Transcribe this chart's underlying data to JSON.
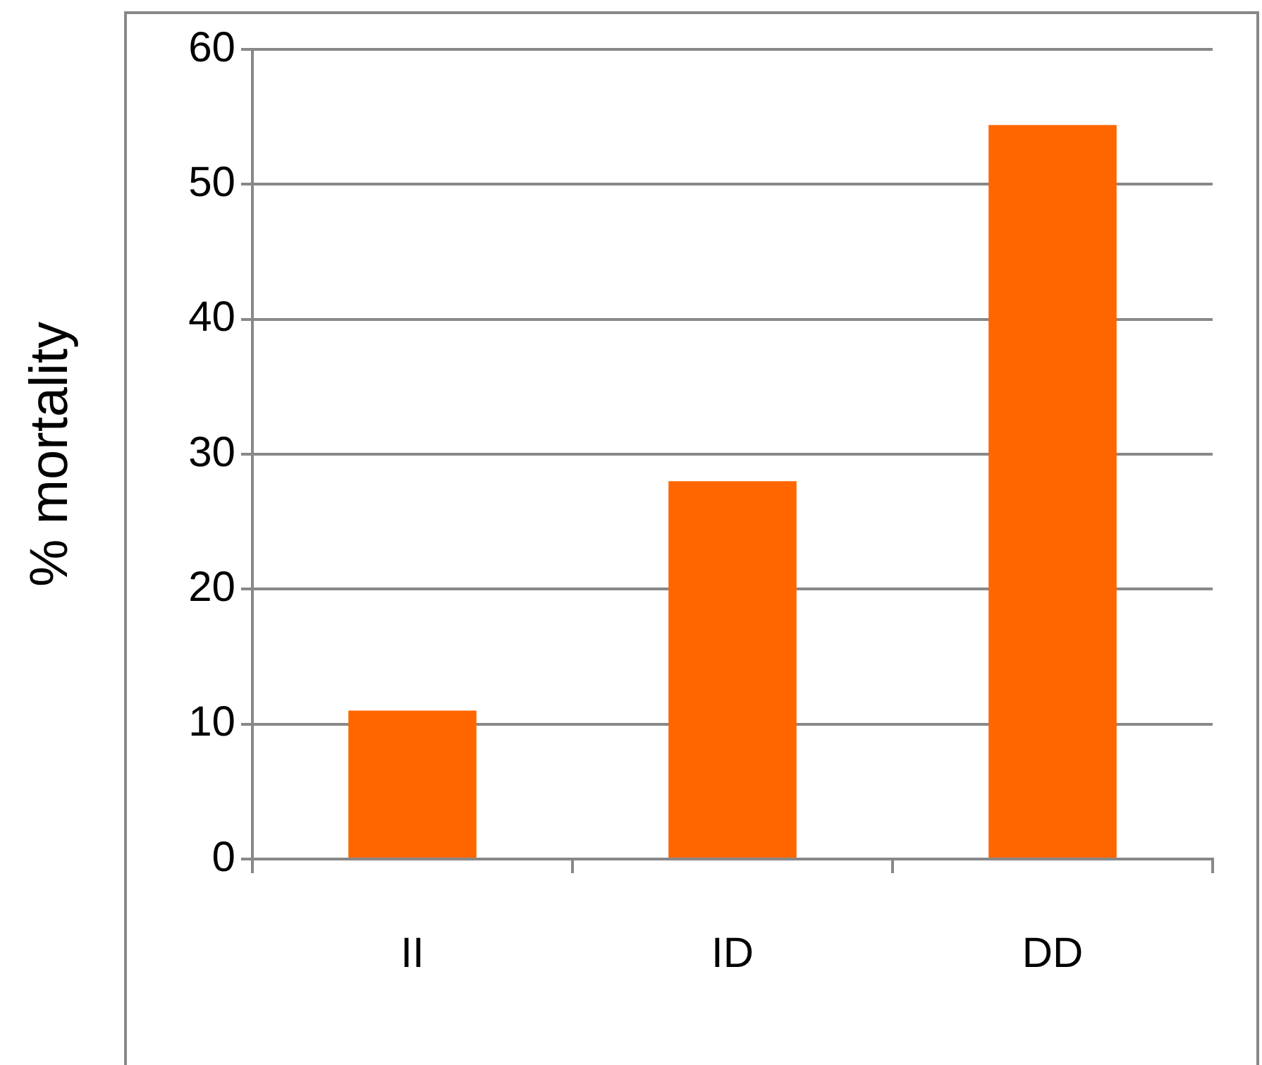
{
  "chart_data": {
    "type": "bar",
    "ylabel": "% mortality",
    "categories": [
      "II",
      "ID",
      "DD"
    ],
    "values": [
      11,
      28,
      54.4
    ],
    "color": "#ff6600",
    "ylim": [
      0,
      60
    ],
    "yticks": [
      0,
      10,
      20,
      30,
      40,
      50,
      60
    ],
    "grid": "y"
  }
}
